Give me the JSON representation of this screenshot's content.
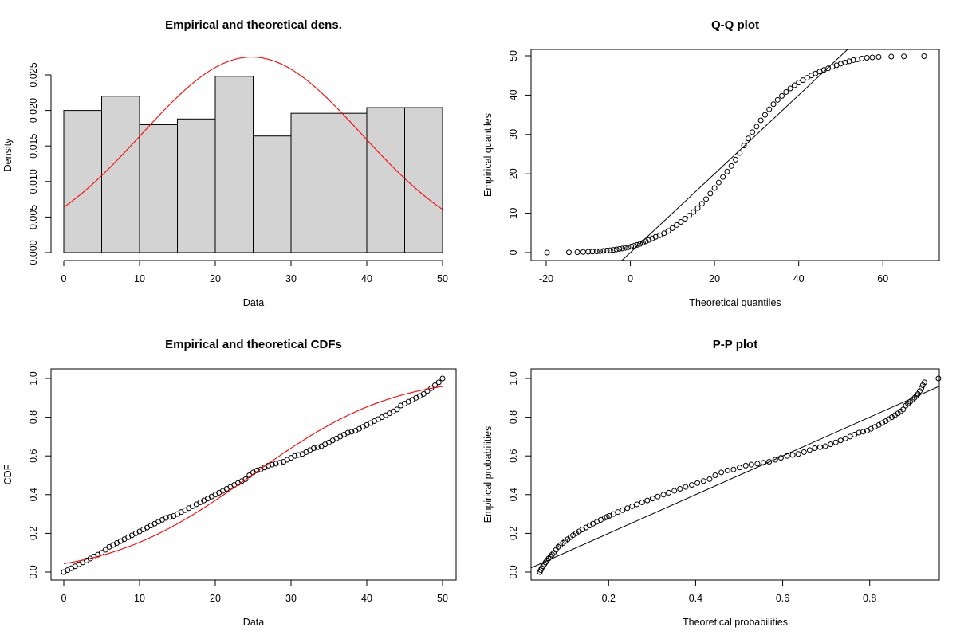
{
  "chart_data": [
    {
      "type": "histogram",
      "title": "Empirical and theoretical dens.",
      "xlabel": "Data",
      "ylabel": "Density",
      "xlim": [
        0,
        50
      ],
      "ylim": [
        0,
        0.025
      ],
      "xticks": [
        0,
        10,
        20,
        30,
        40,
        50
      ],
      "yticks": [
        0.0,
        0.005,
        0.01,
        0.015,
        0.02,
        0.025
      ],
      "ytick_labels": [
        "0.000",
        "0.005",
        "0.010",
        "0.015",
        "0.020",
        "0.025"
      ],
      "bins": [
        [
          0,
          5
        ],
        [
          5,
          10
        ],
        [
          10,
          15
        ],
        [
          15,
          20
        ],
        [
          20,
          25
        ],
        [
          25,
          30
        ],
        [
          30,
          35
        ],
        [
          35,
          40
        ],
        [
          40,
          45
        ],
        [
          45,
          50
        ]
      ],
      "values": [
        0.02,
        0.022,
        0.018,
        0.0188,
        0.0248,
        0.0164,
        0.0196,
        0.0196,
        0.0204,
        0.0204
      ],
      "bar_color": "#d3d3d3",
      "curve": {
        "dist": "normal",
        "mean": 24.8,
        "sd": 14.5,
        "color": "#ff0000"
      }
    },
    {
      "type": "scatter",
      "title": "Q-Q plot",
      "xlabel": "Theoretical quantiles",
      "ylabel": "Empirical quantiles",
      "xlim": [
        -20,
        70
      ],
      "ylim": [
        0,
        50
      ],
      "xticks": [
        -20,
        0,
        20,
        40,
        60
      ],
      "yticks": [
        0,
        10,
        20,
        30,
        40,
        50
      ],
      "reference_line": {
        "from": [
          -2,
          -2
        ],
        "to": [
          52,
          52
        ]
      },
      "points": [
        [
          -19.8,
          0.0
        ],
        [
          -14.6,
          0.05
        ],
        [
          -12.6,
          0.1
        ],
        [
          -11.2,
          0.15
        ],
        [
          -10.0,
          0.2
        ],
        [
          -9.0,
          0.25
        ],
        [
          -8.0,
          0.3
        ],
        [
          -7.2,
          0.35
        ],
        [
          -6.4,
          0.42
        ],
        [
          -5.6,
          0.5
        ],
        [
          -4.8,
          0.58
        ],
        [
          -4.0,
          0.68
        ],
        [
          -3.3,
          0.8
        ],
        [
          -2.6,
          0.92
        ],
        [
          -1.9,
          1.05
        ],
        [
          -1.2,
          1.2
        ],
        [
          -0.5,
          1.35
        ],
        [
          0.2,
          1.52
        ],
        [
          0.9,
          1.72
        ],
        [
          1.6,
          1.95
        ],
        [
          2.3,
          2.2
        ],
        [
          3.0,
          2.5
        ],
        [
          3.7,
          2.85
        ],
        [
          4.4,
          3.2
        ],
        [
          5.2,
          3.6
        ],
        [
          6.0,
          4.0
        ],
        [
          7.0,
          4.4
        ],
        [
          8.0,
          4.9
        ],
        [
          9.0,
          5.5
        ],
        [
          10.0,
          6.2
        ],
        [
          11.0,
          7.0
        ],
        [
          12.0,
          7.8
        ],
        [
          13.0,
          8.6
        ],
        [
          14.0,
          9.4
        ],
        [
          15.0,
          10.3
        ],
        [
          16.0,
          11.3
        ],
        [
          17.0,
          12.4
        ],
        [
          18.0,
          13.6
        ],
        [
          19.0,
          15.0
        ],
        [
          20.0,
          16.4
        ],
        [
          21.0,
          17.8
        ],
        [
          22.0,
          19.2
        ],
        [
          23.0,
          20.6
        ],
        [
          24.0,
          22.0
        ],
        [
          25.0,
          23.6
        ],
        [
          26.0,
          25.3
        ],
        [
          27.0,
          27.2
        ],
        [
          28.0,
          29.0
        ],
        [
          29.0,
          30.6
        ],
        [
          30.0,
          32.0
        ],
        [
          31.0,
          33.6
        ],
        [
          32.0,
          35.0
        ],
        [
          33.0,
          36.4
        ],
        [
          34.0,
          37.7
        ],
        [
          35.0,
          38.8
        ],
        [
          36.0,
          39.8
        ],
        [
          37.0,
          40.8
        ],
        [
          38.0,
          41.7
        ],
        [
          39.0,
          42.5
        ],
        [
          40.0,
          43.2
        ],
        [
          41.0,
          43.8
        ],
        [
          42.0,
          44.4
        ],
        [
          43.0,
          45.0
        ],
        [
          44.0,
          45.5
        ],
        [
          45.0,
          46.0
        ],
        [
          46.0,
          46.4
        ],
        [
          47.0,
          46.8
        ],
        [
          48.0,
          47.2
        ],
        [
          49.0,
          47.6
        ],
        [
          50.0,
          48.0
        ],
        [
          51.0,
          48.3
        ],
        [
          52.0,
          48.6
        ],
        [
          53.0,
          48.9
        ],
        [
          54.0,
          49.1
        ],
        [
          55.0,
          49.3
        ],
        [
          56.2,
          49.5
        ],
        [
          57.5,
          49.6
        ],
        [
          59.0,
          49.7
        ],
        [
          62.0,
          49.8
        ],
        [
          65.0,
          49.85
        ],
        [
          69.8,
          49.9
        ]
      ]
    },
    {
      "type": "scatter",
      "title": "Empirical and theoretical CDFs",
      "xlabel": "Data",
      "ylabel": "CDF",
      "xlim": [
        0,
        50
      ],
      "ylim": [
        0,
        1
      ],
      "xticks": [
        0,
        10,
        20,
        30,
        40,
        50
      ],
      "yticks": [
        0.0,
        0.2,
        0.4,
        0.6,
        0.8,
        1.0
      ],
      "ytick_labels": [
        "0.0",
        "0.2",
        "0.4",
        "0.6",
        "0.8",
        "1.0"
      ],
      "points": [
        [
          0.0,
          0.0
        ],
        [
          0.5,
          0.01
        ],
        [
          1.0,
          0.02
        ],
        [
          1.5,
          0.03
        ],
        [
          2.0,
          0.04
        ],
        [
          2.5,
          0.05
        ],
        [
          3.0,
          0.06
        ],
        [
          3.5,
          0.07
        ],
        [
          4.0,
          0.08
        ],
        [
          4.5,
          0.09
        ],
        [
          5.0,
          0.1
        ],
        [
          5.5,
          0.115
        ],
        [
          6.0,
          0.13
        ],
        [
          6.5,
          0.14
        ],
        [
          7.0,
          0.15
        ],
        [
          7.5,
          0.16
        ],
        [
          8.0,
          0.17
        ],
        [
          8.5,
          0.18
        ],
        [
          9.0,
          0.19
        ],
        [
          9.5,
          0.2
        ],
        [
          10.0,
          0.21
        ],
        [
          10.5,
          0.22
        ],
        [
          11.0,
          0.23
        ],
        [
          11.5,
          0.24
        ],
        [
          12.0,
          0.25
        ],
        [
          12.5,
          0.26
        ],
        [
          13.0,
          0.27
        ],
        [
          13.5,
          0.28
        ],
        [
          14.0,
          0.285
        ],
        [
          14.5,
          0.29
        ],
        [
          15.0,
          0.3
        ],
        [
          15.5,
          0.31
        ],
        [
          16.0,
          0.32
        ],
        [
          16.5,
          0.33
        ],
        [
          17.0,
          0.34
        ],
        [
          17.5,
          0.35
        ],
        [
          18.0,
          0.36
        ],
        [
          18.5,
          0.37
        ],
        [
          19.0,
          0.38
        ],
        [
          19.5,
          0.39
        ],
        [
          20.0,
          0.4
        ],
        [
          20.5,
          0.41
        ],
        [
          21.0,
          0.42
        ],
        [
          21.5,
          0.43
        ],
        [
          22.0,
          0.44
        ],
        [
          22.5,
          0.45
        ],
        [
          23.0,
          0.46
        ],
        [
          23.5,
          0.47
        ],
        [
          24.0,
          0.48
        ],
        [
          24.5,
          0.5
        ],
        [
          25.0,
          0.515
        ],
        [
          25.5,
          0.525
        ],
        [
          26.0,
          0.53
        ],
        [
          26.5,
          0.54
        ],
        [
          27.0,
          0.55
        ],
        [
          27.5,
          0.555
        ],
        [
          28.0,
          0.56
        ],
        [
          28.5,
          0.565
        ],
        [
          29.0,
          0.57
        ],
        [
          29.5,
          0.58
        ],
        [
          30.0,
          0.59
        ],
        [
          30.5,
          0.6
        ],
        [
          31.0,
          0.605
        ],
        [
          31.5,
          0.61
        ],
        [
          32.0,
          0.62
        ],
        [
          32.5,
          0.63
        ],
        [
          33.0,
          0.64
        ],
        [
          33.5,
          0.645
        ],
        [
          34.0,
          0.65
        ],
        [
          34.5,
          0.66
        ],
        [
          35.0,
          0.67
        ],
        [
          35.5,
          0.68
        ],
        [
          36.0,
          0.69
        ],
        [
          36.5,
          0.7
        ],
        [
          37.0,
          0.71
        ],
        [
          37.5,
          0.72
        ],
        [
          38.0,
          0.725
        ],
        [
          38.5,
          0.73
        ],
        [
          39.0,
          0.74
        ],
        [
          39.5,
          0.75
        ],
        [
          40.0,
          0.76
        ],
        [
          40.5,
          0.77
        ],
        [
          41.0,
          0.78
        ],
        [
          41.5,
          0.79
        ],
        [
          42.0,
          0.8
        ],
        [
          42.5,
          0.81
        ],
        [
          43.0,
          0.82
        ],
        [
          43.5,
          0.83
        ],
        [
          44.0,
          0.84
        ],
        [
          44.5,
          0.86
        ],
        [
          45.0,
          0.87
        ],
        [
          45.5,
          0.88
        ],
        [
          46.0,
          0.89
        ],
        [
          46.5,
          0.9
        ],
        [
          47.0,
          0.91
        ],
        [
          47.5,
          0.92
        ],
        [
          48.0,
          0.935
        ],
        [
          48.5,
          0.95
        ],
        [
          49.0,
          0.965
        ],
        [
          49.5,
          0.98
        ],
        [
          50.0,
          1.0
        ]
      ],
      "curve": {
        "dist": "normal",
        "mean": 24.8,
        "sd": 14.5,
        "color": "#ff0000"
      }
    },
    {
      "type": "scatter",
      "title": "P-P plot",
      "xlabel": "Theoretical probabilities",
      "ylabel": "Empirical probabilities",
      "xlim": [
        0.04,
        0.96
      ],
      "ylim": [
        0,
        1
      ],
      "xticks": [
        0.2,
        0.4,
        0.6,
        0.8
      ],
      "xtick_labels": [
        "0.2",
        "0.4",
        "0.6",
        "0.8"
      ],
      "yticks": [
        0.0,
        0.2,
        0.4,
        0.6,
        0.8,
        1.0
      ],
      "ytick_labels": [
        "0.0",
        "0.2",
        "0.4",
        "0.6",
        "0.8",
        "1.0"
      ],
      "reference_line": {
        "from": [
          0.0,
          0.0
        ],
        "to": [
          1.0,
          1.0
        ]
      },
      "points": [
        [
          0.042,
          0.0
        ],
        [
          0.044,
          0.01
        ],
        [
          0.046,
          0.02
        ],
        [
          0.049,
          0.03
        ],
        [
          0.052,
          0.04
        ],
        [
          0.055,
          0.05
        ],
        [
          0.058,
          0.06
        ],
        [
          0.062,
          0.07
        ],
        [
          0.066,
          0.08
        ],
        [
          0.07,
          0.09
        ],
        [
          0.074,
          0.1
        ],
        [
          0.079,
          0.115
        ],
        [
          0.084,
          0.13
        ],
        [
          0.089,
          0.14
        ],
        [
          0.095,
          0.15
        ],
        [
          0.1,
          0.16
        ],
        [
          0.106,
          0.17
        ],
        [
          0.112,
          0.18
        ],
        [
          0.118,
          0.19
        ],
        [
          0.125,
          0.2
        ],
        [
          0.132,
          0.21
        ],
        [
          0.14,
          0.22
        ],
        [
          0.148,
          0.23
        ],
        [
          0.156,
          0.24
        ],
        [
          0.164,
          0.25
        ],
        [
          0.173,
          0.26
        ],
        [
          0.182,
          0.27
        ],
        [
          0.191,
          0.28
        ],
        [
          0.196,
          0.285
        ],
        [
          0.201,
          0.29
        ],
        [
          0.211,
          0.3
        ],
        [
          0.221,
          0.31
        ],
        [
          0.232,
          0.32
        ],
        [
          0.243,
          0.33
        ],
        [
          0.254,
          0.34
        ],
        [
          0.265,
          0.35
        ],
        [
          0.277,
          0.36
        ],
        [
          0.289,
          0.37
        ],
        [
          0.301,
          0.38
        ],
        [
          0.313,
          0.39
        ],
        [
          0.326,
          0.4
        ],
        [
          0.338,
          0.41
        ],
        [
          0.351,
          0.42
        ],
        [
          0.364,
          0.43
        ],
        [
          0.377,
          0.44
        ],
        [
          0.391,
          0.45
        ],
        [
          0.404,
          0.46
        ],
        [
          0.418,
          0.47
        ],
        [
          0.432,
          0.48
        ],
        [
          0.445,
          0.5
        ],
        [
          0.459,
          0.515
        ],
        [
          0.473,
          0.525
        ],
        [
          0.487,
          0.53
        ],
        [
          0.501,
          0.54
        ],
        [
          0.515,
          0.55
        ],
        [
          0.528,
          0.555
        ],
        [
          0.542,
          0.56
        ],
        [
          0.556,
          0.565
        ],
        [
          0.569,
          0.57
        ],
        [
          0.583,
          0.58
        ],
        [
          0.596,
          0.59
        ],
        [
          0.61,
          0.6
        ],
        [
          0.623,
          0.605
        ],
        [
          0.636,
          0.61
        ],
        [
          0.649,
          0.62
        ],
        [
          0.662,
          0.63
        ],
        [
          0.674,
          0.64
        ],
        [
          0.686,
          0.645
        ],
        [
          0.698,
          0.65
        ],
        [
          0.71,
          0.66
        ],
        [
          0.722,
          0.67
        ],
        [
          0.733,
          0.68
        ],
        [
          0.744,
          0.69
        ],
        [
          0.755,
          0.7
        ],
        [
          0.765,
          0.71
        ],
        [
          0.775,
          0.72
        ],
        [
          0.785,
          0.725
        ],
        [
          0.794,
          0.73
        ],
        [
          0.803,
          0.74
        ],
        [
          0.812,
          0.75
        ],
        [
          0.821,
          0.76
        ],
        [
          0.829,
          0.77
        ],
        [
          0.837,
          0.78
        ],
        [
          0.844,
          0.79
        ],
        [
          0.851,
          0.8
        ],
        [
          0.858,
          0.81
        ],
        [
          0.865,
          0.82
        ],
        [
          0.871,
          0.83
        ],
        [
          0.877,
          0.84
        ],
        [
          0.883,
          0.86
        ],
        [
          0.888,
          0.87
        ],
        [
          0.893,
          0.88
        ],
        [
          0.898,
          0.89
        ],
        [
          0.903,
          0.9
        ],
        [
          0.907,
          0.91
        ],
        [
          0.911,
          0.92
        ],
        [
          0.915,
          0.935
        ],
        [
          0.919,
          0.95
        ],
        [
          0.922,
          0.965
        ],
        [
          0.926,
          0.98
        ],
        [
          0.958,
          1.0
        ]
      ]
    }
  ]
}
